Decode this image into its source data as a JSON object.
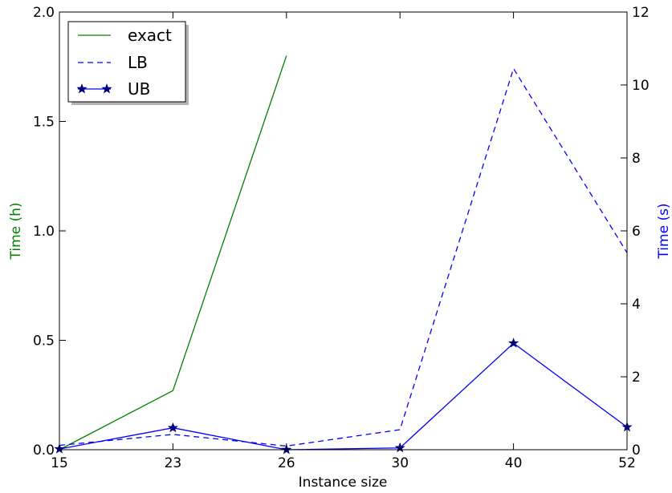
{
  "chart_data": {
    "type": "line",
    "xlabel": "Instance size",
    "x_categories": [
      "15",
      "23",
      "26",
      "30",
      "40",
      "52"
    ],
    "left_axis": {
      "label": "Time (h)",
      "color": "#008000",
      "ylim": [
        0,
        2.0
      ],
      "ticks": [
        "0.0",
        "0.5",
        "1.0",
        "1.5",
        "2.0"
      ],
      "tick_values": [
        0,
        0.5,
        1.0,
        1.5,
        2.0
      ]
    },
    "right_axis": {
      "label": "Time (s)",
      "color": "#0000ff",
      "ylim": [
        0,
        12
      ],
      "ticks": [
        "0",
        "2",
        "4",
        "6",
        "8",
        "10",
        "12"
      ],
      "tick_values": [
        0,
        2,
        4,
        6,
        8,
        10,
        12
      ]
    },
    "series": [
      {
        "name": "exact",
        "axis": "left",
        "color": "#008000",
        "style": "solid",
        "marker": "none",
        "values": [
          0.0,
          0.27,
          1.8,
          null,
          null,
          null
        ]
      },
      {
        "name": "LB",
        "axis": "right",
        "color": "#0000ff",
        "style": "dashed",
        "marker": "none",
        "values": [
          0.12,
          0.42,
          0.1,
          0.55,
          10.45,
          5.4
        ]
      },
      {
        "name": "UB",
        "axis": "right",
        "color": "#0000ff",
        "style": "solid",
        "marker": "star",
        "values": [
          0.02,
          0.6,
          0.0,
          0.05,
          2.92,
          0.62
        ]
      }
    ],
    "legend_position": "top-left",
    "grid": false
  }
}
